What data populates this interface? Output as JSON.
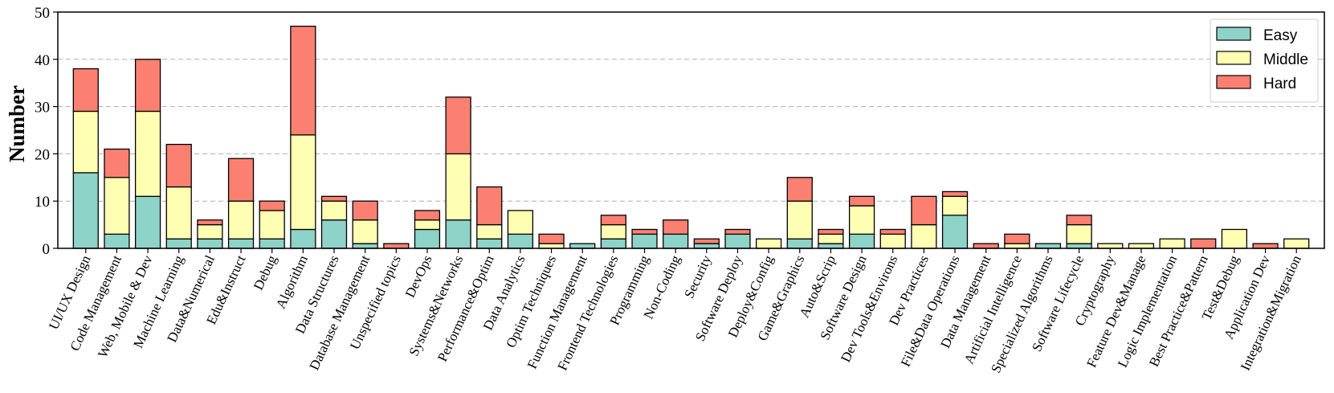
{
  "chart_data": {
    "type": "bar",
    "stacked": true,
    "ylabel": "Number",
    "ylim": [
      0,
      50
    ],
    "yticks": [
      0,
      10,
      20,
      30,
      40,
      50
    ],
    "grid": "horizontal dashed",
    "legend_position": "top-right",
    "categories": [
      "UI/UX Design",
      "Code Management",
      "Web, Mobile & Dev",
      "Machine Learning",
      "Data&Numerical",
      "Edu&Instruct",
      "Debug",
      "Algorithm",
      "Data Structures",
      "Database Management",
      "Unspecified topics",
      "DevOps",
      "Systems&Networks",
      "Performance&Optim",
      "Data Analytics",
      "Optim Techniques",
      "Function Management",
      "Frontend Technologies",
      "Programming",
      "Non-Coding",
      "Security",
      "Software Deploy",
      "Deploy&Config",
      "Game&Graphics",
      "Auto&Scrip",
      "Software Design",
      "Dev Tools&Environs",
      "Dev Practices",
      "File&Data Operations",
      "Data Management",
      "Artificial Intelligence",
      "Specialized Algorithms",
      "Software Lifecycle",
      "Cryptography",
      "Feature Dev&Manage",
      "Logic Implementation",
      "Best Practice&Pattern",
      "Test&Debug",
      "Application Dev",
      "Integration&Migration"
    ],
    "series": [
      {
        "name": "Easy",
        "color": "#8dd3c7",
        "values": [
          16,
          3,
          11,
          2,
          2,
          2,
          2,
          4,
          6,
          1,
          0,
          4,
          6,
          2,
          3,
          0,
          1,
          2,
          3,
          3,
          1,
          3,
          0,
          2,
          1,
          3,
          0,
          0,
          7,
          0,
          0,
          1,
          1,
          0,
          0,
          0,
          0,
          0,
          0,
          0
        ]
      },
      {
        "name": "Middle",
        "color": "#ffffb3",
        "values": [
          13,
          12,
          18,
          11,
          3,
          8,
          6,
          20,
          4,
          5,
          0,
          2,
          14,
          3,
          5,
          1,
          0,
          3,
          0,
          0,
          0,
          0,
          2,
          8,
          2,
          6,
          3,
          5,
          4,
          0,
          1,
          0,
          4,
          1,
          1,
          2,
          0,
          4,
          0,
          2
        ]
      },
      {
        "name": "Hard",
        "color": "#fb8072",
        "values": [
          9,
          6,
          11,
          9,
          1,
          9,
          2,
          23,
          1,
          4,
          1,
          2,
          12,
          8,
          0,
          2,
          0,
          2,
          1,
          3,
          1,
          1,
          0,
          5,
          1,
          2,
          1,
          6,
          1,
          1,
          2,
          0,
          2,
          0,
          0,
          0,
          2,
          0,
          1,
          0
        ]
      }
    ]
  }
}
